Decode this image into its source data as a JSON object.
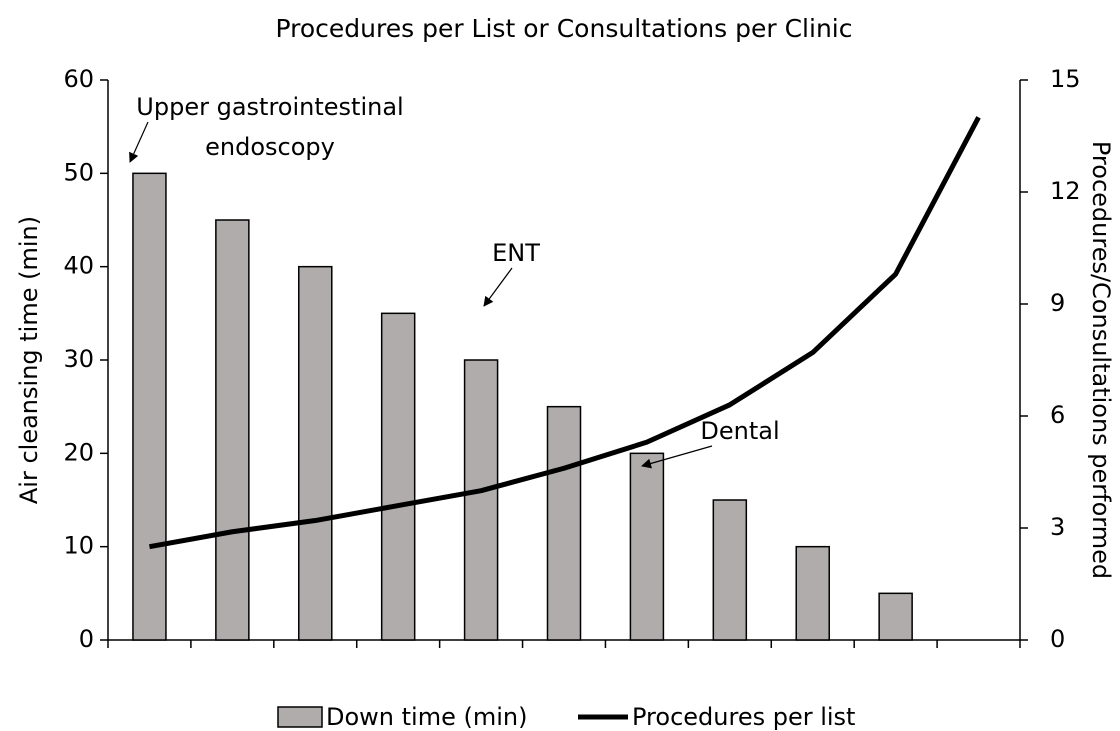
{
  "chart_data": {
    "type": "bar",
    "title": "Procedures per List or Consultations per Clinic",
    "y_label": "Air cleansing time (min)",
    "y2_label": "Procedures/Consultations performed",
    "categories": [
      null,
      null,
      null,
      null,
      null,
      null,
      null,
      null,
      null,
      null,
      null
    ],
    "series": [
      {
        "name": "Down time (min)",
        "type": "bar",
        "color": "#b0acac",
        "values": [
          50,
          45,
          40,
          35,
          30,
          25,
          20,
          15,
          10,
          5,
          null
        ]
      },
      {
        "name": "Procedures per list",
        "type": "line",
        "color": "#000000",
        "axis": "y2",
        "values": [
          2.5,
          2.9,
          3.2,
          3.6,
          4.0,
          4.6,
          5.3,
          6.3,
          7.7,
          9.8,
          14.0
        ]
      }
    ],
    "ylim": [
      0,
      60
    ],
    "yticks": [
      0,
      10,
      20,
      30,
      40,
      50,
      60
    ],
    "y2lim": [
      0,
      15
    ],
    "y2ticks": [
      0,
      3,
      6,
      9,
      12,
      15
    ],
    "annotations": [
      {
        "text": [
          "Upper gastrointestinal",
          "endoscopy"
        ]
      },
      {
        "text": [
          "ENT"
        ]
      },
      {
        "text": [
          "Dental"
        ]
      }
    ],
    "legend": "bottom"
  }
}
